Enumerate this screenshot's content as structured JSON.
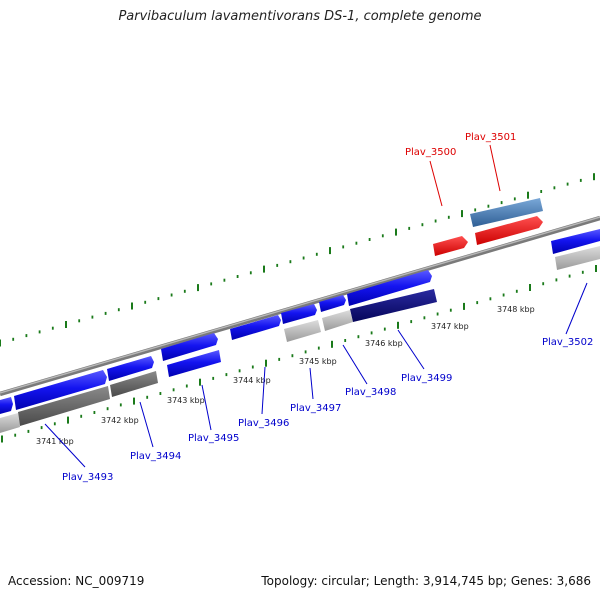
{
  "title": "Parvibaculum lavamentivorans DS-1, complete genome",
  "accession": "Accession: NC_009719",
  "topology": "Topology: circular; Length: 3,914,745 bp; Genes: 3,686",
  "colors": {
    "forward_gene": "#1a1aff",
    "reverse_gene": "#0000ff",
    "gray_light": "#bcbcbc",
    "gray_dark": "#6a6a6a",
    "navy": "#0a0a80",
    "highlight_red": "#ff0000",
    "highlight_steel": "#4f87c0",
    "backbone": "#8a8a8a",
    "tick_green": "#1a7a1a",
    "label_blue": "#0000cc",
    "label_red": "#dd0000"
  },
  "scale": {
    "ticks": [
      {
        "label": "3741 kbp"
      },
      {
        "label": "3742 kbp"
      },
      {
        "label": "3743 kbp"
      },
      {
        "label": "3744 kbp"
      },
      {
        "label": "3745 kbp"
      },
      {
        "label": "3746 kbp"
      },
      {
        "label": "3747 kbp"
      },
      {
        "label": "3748 kbp"
      }
    ]
  },
  "genes": [
    {
      "label": "Plav_3493",
      "color": "blue"
    },
    {
      "label": "Plav_3494",
      "color": "blue"
    },
    {
      "label": "Plav_3495",
      "color": "blue"
    },
    {
      "label": "Plav_3496",
      "color": "blue"
    },
    {
      "label": "Plav_3497",
      "color": "blue"
    },
    {
      "label": "Plav_3498",
      "color": "blue"
    },
    {
      "label": "Plav_3499",
      "color": "blue"
    },
    {
      "label": "Plav_3500",
      "color": "red"
    },
    {
      "label": "Plav_3501",
      "color": "red"
    },
    {
      "label": "Plav_3502",
      "color": "blue"
    }
  ]
}
